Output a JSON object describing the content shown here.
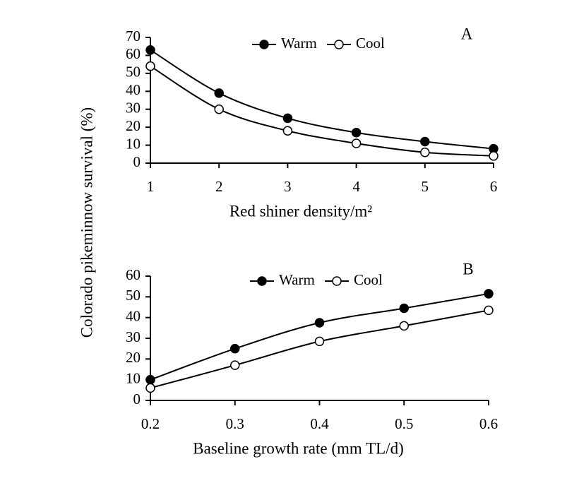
{
  "ylabel": "Colorado pikeminnow survival (%)",
  "chart_data": [
    {
      "type": "line",
      "annotation": "A",
      "xlabel": "Red shiner density/m²",
      "x": [
        1,
        2,
        3,
        4,
        5,
        6
      ],
      "xlim": [
        1,
        6
      ],
      "xticks": [
        1,
        2,
        3,
        4,
        5,
        6
      ],
      "ylim": [
        0,
        70
      ],
      "yticks": [
        0,
        10,
        20,
        30,
        40,
        50,
        60,
        70
      ],
      "legend": "top",
      "series": [
        {
          "name": "Warm",
          "color": "#000000",
          "marker": "filled",
          "values": [
            63,
            39,
            25,
            17,
            12,
            8
          ]
        },
        {
          "name": "Cool",
          "color": "#000000",
          "marker": "open",
          "values": [
            54,
            30,
            18,
            11,
            6,
            4
          ]
        }
      ]
    },
    {
      "type": "line",
      "annotation": "B",
      "xlabel": "Baseline growth rate (mm TL/d)",
      "x": [
        0.2,
        0.3,
        0.4,
        0.5,
        0.6
      ],
      "xlim": [
        0.2,
        0.6
      ],
      "xticks": [
        0.2,
        0.3,
        0.4,
        0.5,
        0.6
      ],
      "ylim": [
        0,
        60
      ],
      "yticks": [
        0,
        10,
        20,
        30,
        40,
        50,
        60
      ],
      "legend": "top",
      "series": [
        {
          "name": "Warm",
          "color": "#000000",
          "marker": "filled",
          "values": [
            10,
            25,
            37.5,
            44.5,
            51.5
          ]
        },
        {
          "name": "Cool",
          "color": "#000000",
          "marker": "open",
          "values": [
            6,
            17,
            28.5,
            36,
            43.5
          ]
        }
      ]
    }
  ]
}
